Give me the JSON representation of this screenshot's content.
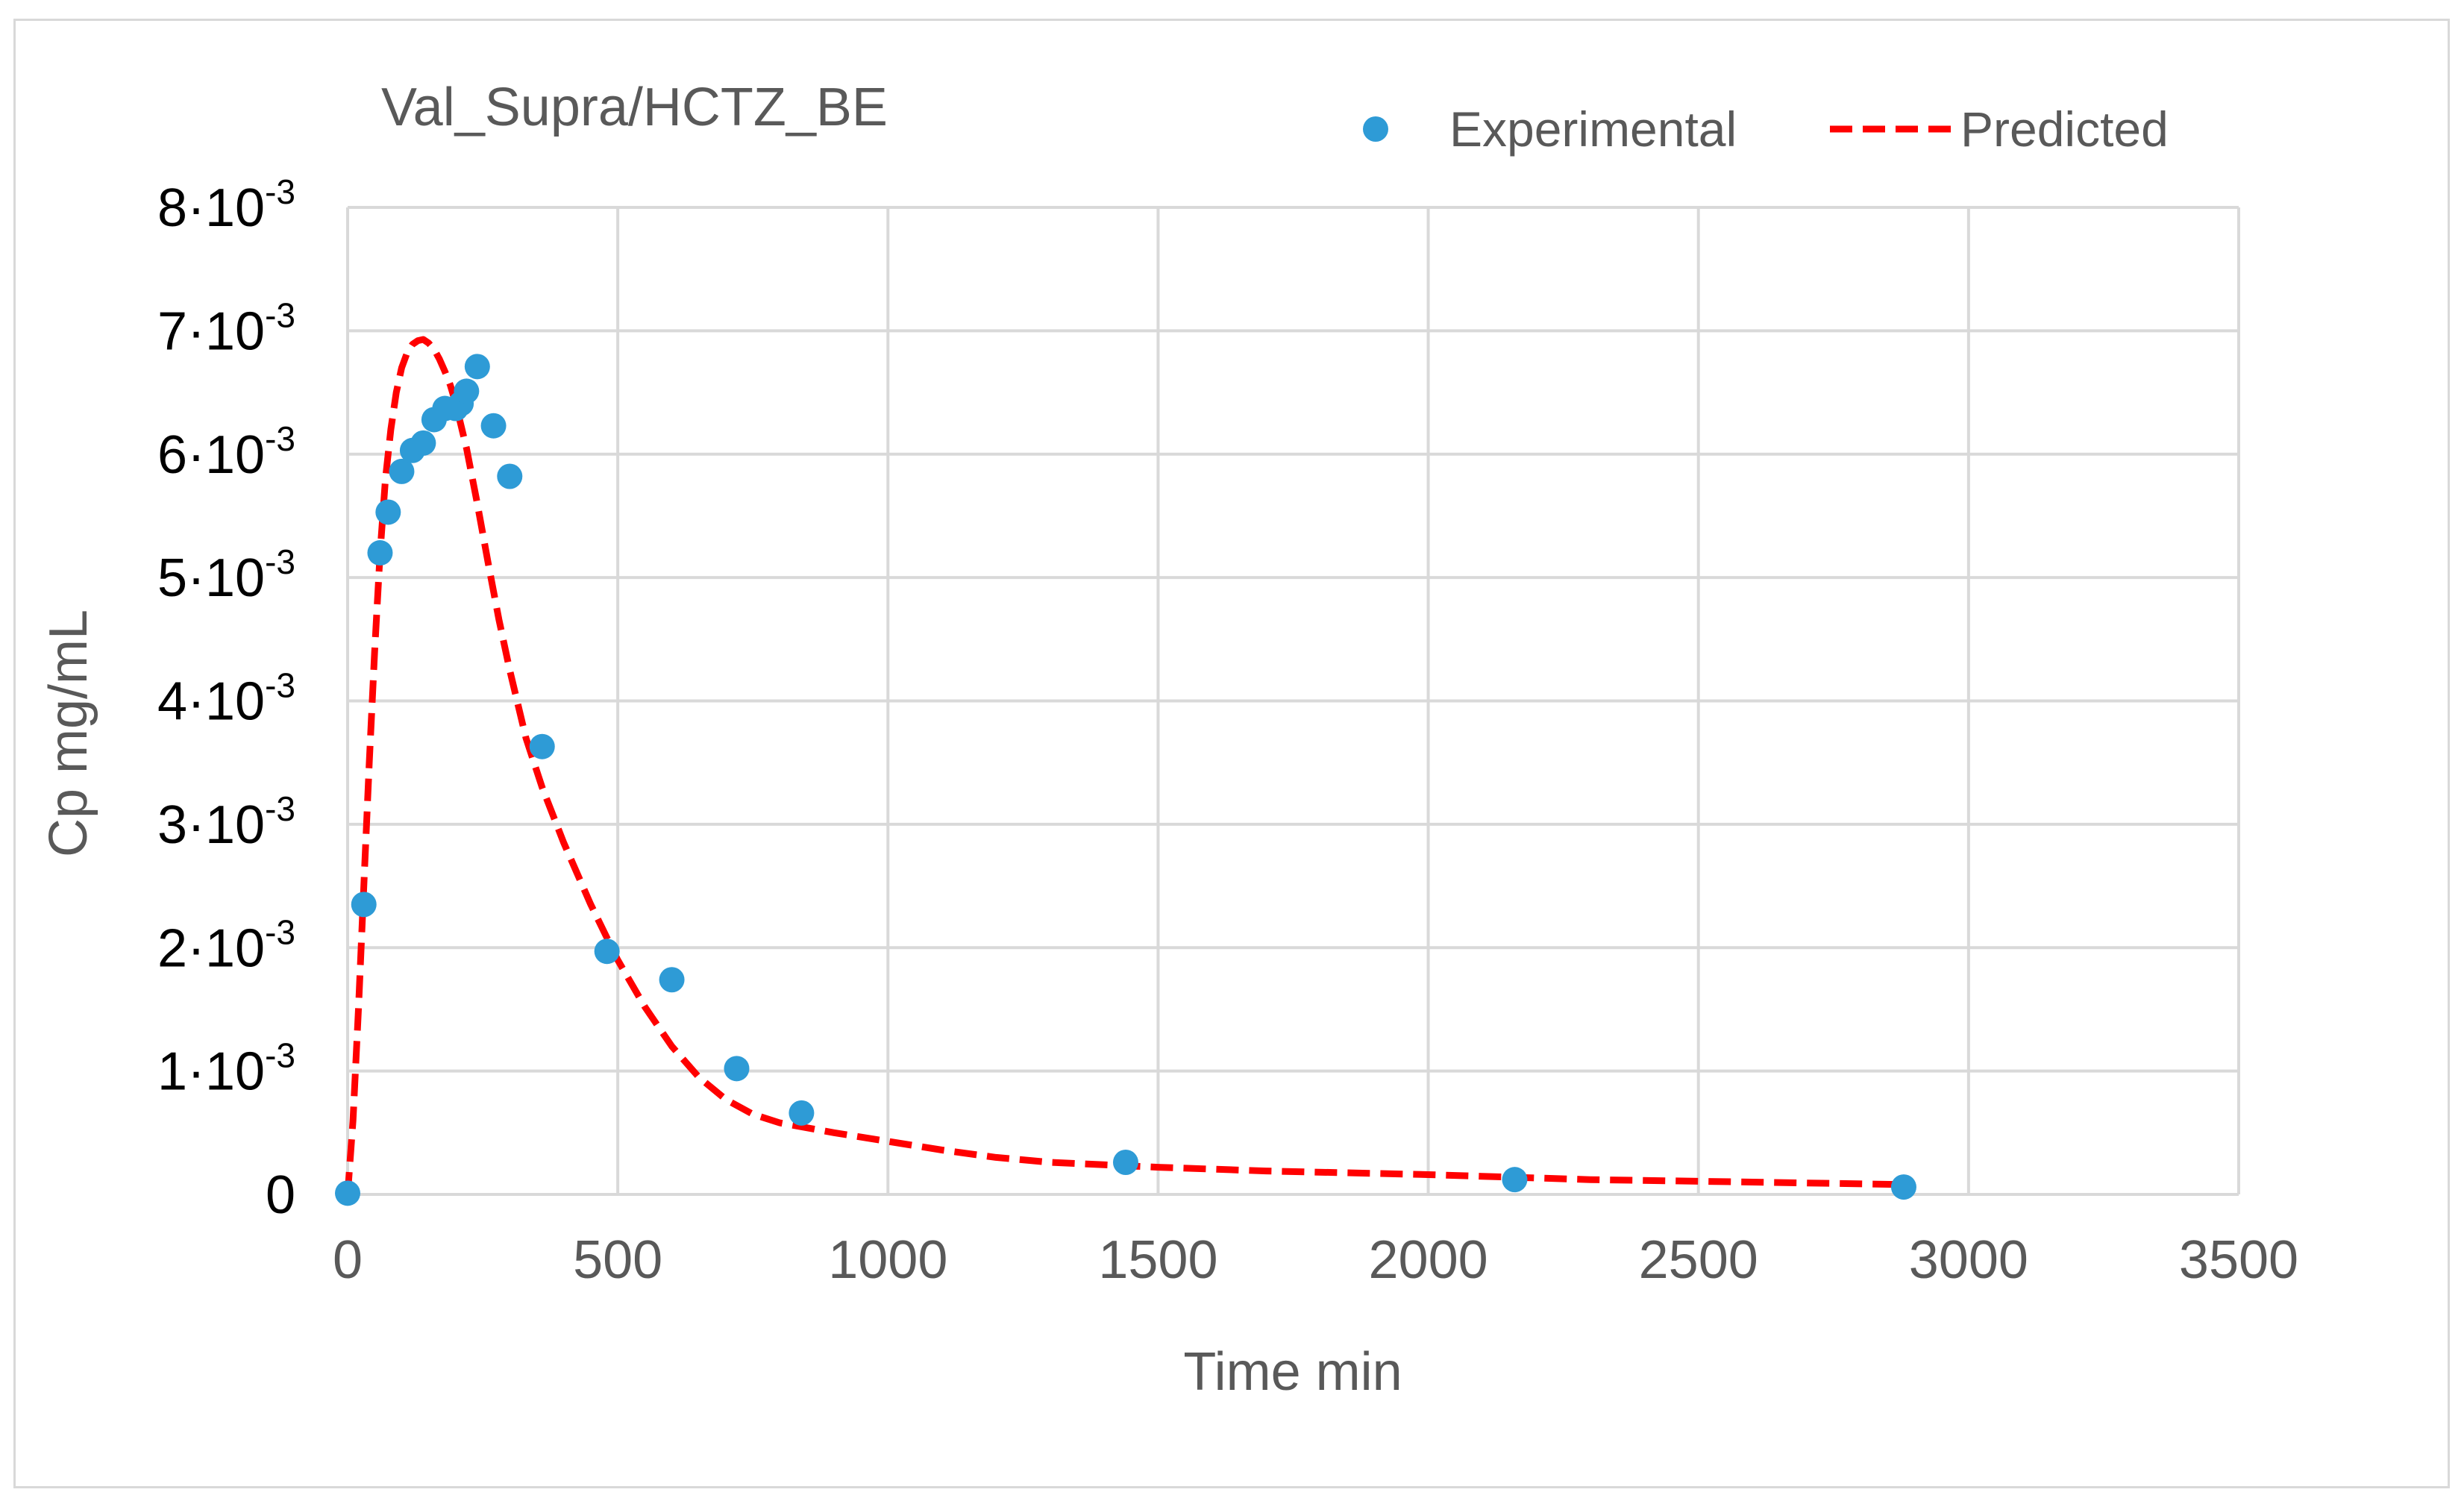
{
  "chart_data": {
    "type": "scatter",
    "title": "Val_Supra/HCTZ_BE",
    "xlabel": "Time min",
    "ylabel": "Cp mg/mL",
    "xlim": [
      0,
      3500
    ],
    "ylim": [
      0,
      0.008
    ],
    "grid": true,
    "legend_position": "top-right",
    "x_ticks": [
      0,
      500,
      1000,
      1500,
      2000,
      2500,
      3000,
      3500
    ],
    "x_tick_labels": [
      "0",
      "500",
      "1000",
      "1500",
      "2000",
      "2500",
      "3000",
      "3500"
    ],
    "y_ticks": [
      0,
      0.001,
      0.002,
      0.003,
      0.004,
      0.005,
      0.006,
      0.007,
      0.008
    ],
    "y_tick_labels": [
      {
        "mant": "0",
        "exp": ""
      },
      {
        "mant": "1·10",
        "exp": "-3"
      },
      {
        "mant": "2·10",
        "exp": "-3"
      },
      {
        "mant": "3·10",
        "exp": "-3"
      },
      {
        "mant": "4·10",
        "exp": "-3"
      },
      {
        "mant": "5·10",
        "exp": "-3"
      },
      {
        "mant": "6·10",
        "exp": "-3"
      },
      {
        "mant": "7·10",
        "exp": "-3"
      },
      {
        "mant": "8·10",
        "exp": "-3"
      }
    ],
    "series": [
      {
        "name": "Experimental",
        "style": "markers",
        "color": "#2e9bd6",
        "x": [
          0,
          30,
          60,
          75,
          100,
          120,
          140,
          160,
          180,
          200,
          210,
          220,
          240,
          270,
          300,
          360,
          480,
          600,
          720,
          840,
          1440,
          2160,
          2880
        ],
        "y": [
          1e-05,
          0.00235,
          0.0052,
          0.00553,
          0.00586,
          0.00603,
          0.00609,
          0.00628,
          0.00637,
          0.00637,
          0.00641,
          0.00651,
          0.00671,
          0.00623,
          0.00582,
          0.00363,
          0.00197,
          0.00174,
          0.00102,
          0.00066,
          0.00026,
          0.00012,
          6e-05
        ]
      },
      {
        "name": "Predicted",
        "style": "dashed-line",
        "color": "#ff0000",
        "x": [
          0,
          10,
          20,
          30,
          40,
          50,
          60,
          70,
          80,
          90,
          100,
          110,
          120,
          130,
          140,
          150,
          160,
          170,
          180,
          190,
          200,
          220,
          240,
          260,
          280,
          300,
          330,
          360,
          400,
          450,
          500,
          550,
          600,
          650,
          700,
          750,
          800,
          850,
          900,
          1000,
          1100,
          1200,
          1300,
          1400,
          1500,
          1700,
          2000,
          2300,
          2600,
          2880
        ],
        "y": [
          0.0,
          0.0006,
          0.0015,
          0.0025,
          0.0035,
          0.0044,
          0.0052,
          0.0058,
          0.0062,
          0.0065,
          0.0067,
          0.00682,
          0.00689,
          0.00692,
          0.00693,
          0.0069,
          0.00685,
          0.00677,
          0.00667,
          0.00656,
          0.00641,
          0.00605,
          0.0056,
          0.00512,
          0.00466,
          0.00425,
          0.0037,
          0.0033,
          0.00285,
          0.00235,
          0.0019,
          0.00152,
          0.0012,
          0.00095,
          0.00077,
          0.00065,
          0.00058,
          0.00054,
          0.0005,
          0.00043,
          0.00036,
          0.0003,
          0.00026,
          0.00024,
          0.00022,
          0.00019,
          0.00016,
          0.00012,
          0.0001,
          8e-05
        ]
      }
    ]
  }
}
